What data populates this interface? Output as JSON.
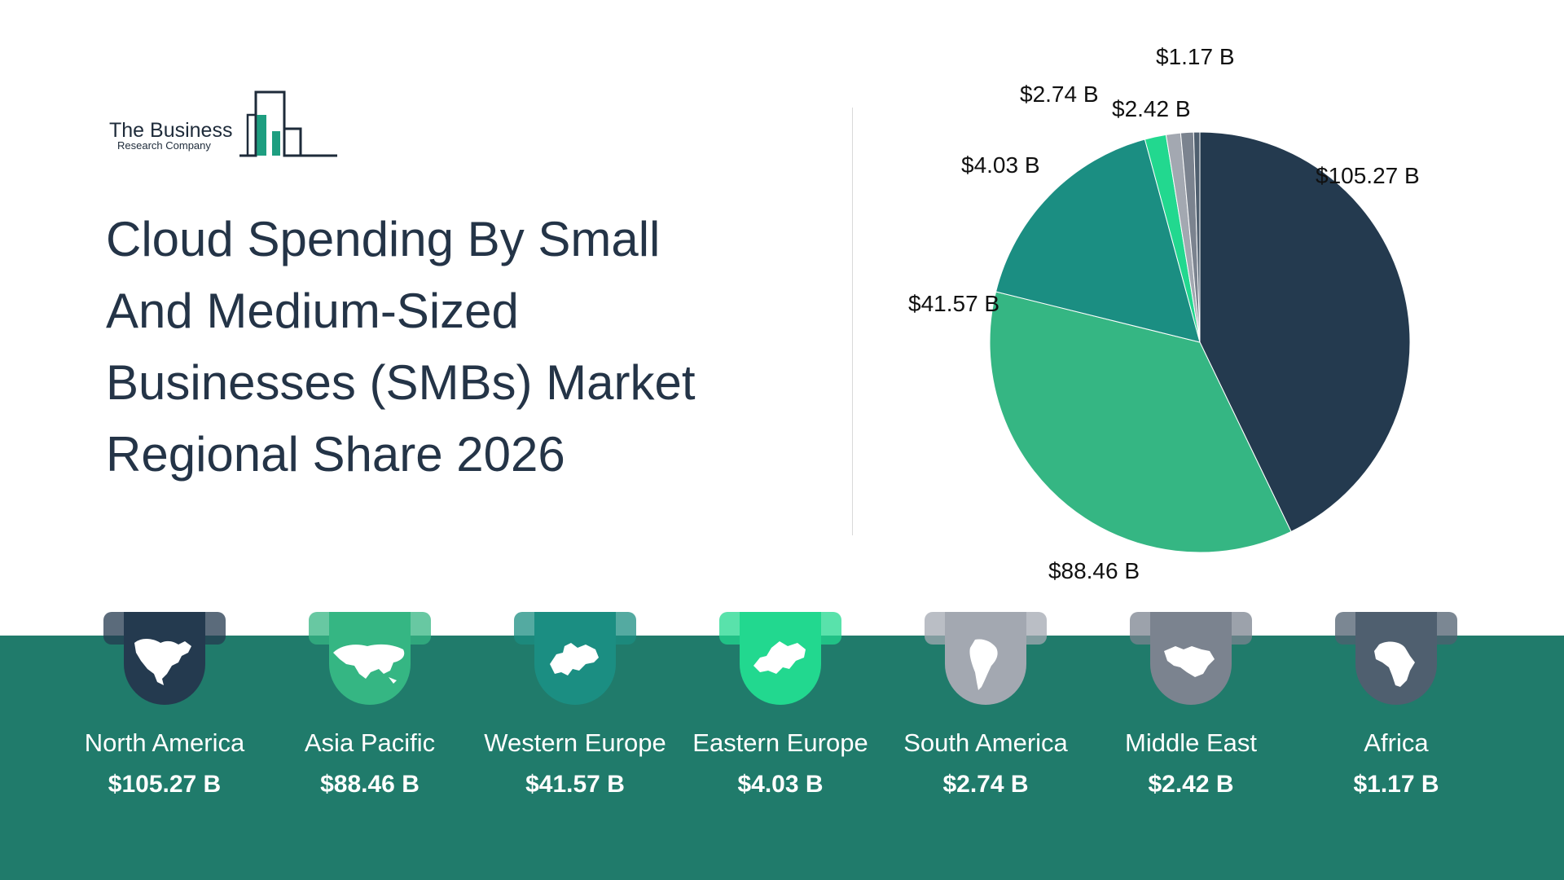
{
  "logo": {
    "line1": "The Business",
    "line2": "Research Company"
  },
  "title": "Cloud Spending By Small And Medium-Sized Businesses (SMBs) Market Regional Share 2026",
  "colors": {
    "band": "#207b6b",
    "north_america": "#243a4f",
    "asia_pacific": "#35b683",
    "western_europe": "#1b8e82",
    "eastern_europe": "#22d88f",
    "south_america": "#a3a8b1",
    "middle_east": "#7b838f",
    "africa": "#4f5f6f"
  },
  "regions": [
    {
      "name": "North America",
      "value": "$105.27 B",
      "icon": "north-america-map-icon"
    },
    {
      "name": "Asia Pacific",
      "value": "$88.46 B",
      "icon": "asia-map-icon"
    },
    {
      "name": "Western Europe",
      "value": "$41.57 B",
      "icon": "western-europe-map-icon"
    },
    {
      "name": "Eastern Europe",
      "value": "$4.03 B",
      "icon": "eastern-europe-map-icon"
    },
    {
      "name": "South America",
      "value": "$2.74 B",
      "icon": "south-america-map-icon"
    },
    {
      "name": "Middle East",
      "value": "$2.42 B",
      "icon": "middle-east-map-icon"
    },
    {
      "name": "Africa",
      "value": "$1.17 B",
      "icon": "africa-map-icon"
    }
  ],
  "chart_data": {
    "type": "pie",
    "categories": [
      "North America",
      "Asia Pacific",
      "Western Europe",
      "Eastern Europe",
      "South America",
      "Middle East",
      "Africa"
    ],
    "values": [
      105.27,
      88.46,
      41.57,
      4.03,
      2.74,
      2.42,
      1.17
    ],
    "data_labels": [
      "$105.27 B",
      "$88.46 B",
      "$41.57 B",
      "$4.03 B",
      "$2.74 B",
      "$2.42 B",
      "$1.17 B"
    ],
    "colors": [
      "#243a4f",
      "#35b683",
      "#1b8e82",
      "#22d88f",
      "#a3a8b1",
      "#7b838f",
      "#4f5f6f"
    ],
    "unit": "$ B"
  }
}
